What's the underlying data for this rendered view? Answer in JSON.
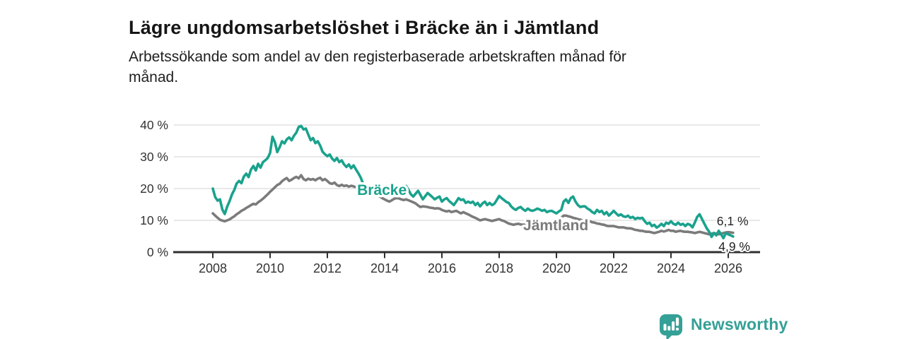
{
  "header": {
    "title": "Lägre ungdomsarbetslöshet i Bräcke än i Jämtland",
    "subtitle_lines": [
      "Arbetssökande som andel av den registerbaserade arbetskraften månad för",
      "månad."
    ]
  },
  "footer": {
    "brand": "Newsworthy"
  },
  "colors": {
    "accent_teal": "#1aa28d",
    "line_gray": "#7b7b7b",
    "axis": "#2f2f2f",
    "grid": "#d9d9d9",
    "logo_teal": "#35a096",
    "value_label": "#222222"
  },
  "chart_data": {
    "type": "line",
    "title": "Lägre ungdomsarbetslöshet i Bräcke än i Jämtland",
    "subtitle": "Arbetssökande som andel av den registerbaserade arbetskraften månad för månad.",
    "unit": "%",
    "x_start": 2008,
    "points_per_year": 12,
    "xlim": [
      2007.5,
      2027.1
    ],
    "ylim": [
      0,
      42
    ],
    "grid": true,
    "x_ticks": [
      {
        "value": 2008,
        "label": "2008"
      },
      {
        "value": 2010,
        "label": "2010"
      },
      {
        "value": 2012,
        "label": "2012"
      },
      {
        "value": 2014,
        "label": "2014"
      },
      {
        "value": 2016,
        "label": "2016"
      },
      {
        "value": 2018,
        "label": "2018"
      },
      {
        "value": 2020,
        "label": "2020"
      },
      {
        "value": 2022,
        "label": "2022"
      },
      {
        "value": 2024,
        "label": "2024"
      },
      {
        "value": 2026,
        "label": "2026"
      }
    ],
    "y_ticks": [
      {
        "value": 0,
        "label": "0 %"
      },
      {
        "value": 10,
        "label": "10 %"
      },
      {
        "value": 20,
        "label": "20 %"
      },
      {
        "value": 30,
        "label": "30 %"
      },
      {
        "value": 40,
        "label": "40 %"
      }
    ],
    "series": [
      {
        "id": "bracke",
        "name": "Bräcke",
        "color": "#1aa28d",
        "label_pos": {
          "year": 2013.04,
          "value": 18.0
        },
        "end_label": {
          "text": "4,9 %",
          "year": 2025.66,
          "value": 0.5
        },
        "values": [
          20.0,
          17.3,
          16.2,
          16.6,
          13.4,
          12.0,
          14.3,
          16.0,
          18.1,
          19.6,
          21.6,
          22.4,
          21.7,
          23.8,
          24.7,
          23.6,
          26.0,
          27.1,
          25.7,
          27.8,
          26.6,
          28.3,
          28.9,
          29.6,
          31.2,
          36.3,
          34.6,
          31.5,
          33.0,
          34.9,
          34.2,
          35.5,
          36.1,
          35.2,
          36.6,
          37.6,
          39.4,
          39.7,
          38.6,
          38.9,
          37.0,
          35.2,
          35.9,
          34.3,
          34.9,
          33.5,
          31.6,
          30.8,
          30.2,
          30.7,
          29.4,
          28.7,
          29.6,
          28.3,
          28.9,
          27.6,
          26.8,
          27.6,
          26.4,
          27.3,
          26.0,
          24.8,
          23.4,
          21.5,
          20.6,
          19.9,
          19.5,
          19.0,
          18.8,
          19.2,
          18.7,
          18.5,
          18.3,
          18.0,
          17.8,
          18.1,
          18.5,
          18.9,
          19.4,
          19.9,
          20.3,
          20.8,
          19.6,
          18.2,
          17.5,
          18.4,
          19.3,
          18.0,
          16.6,
          17.6,
          18.6,
          18.0,
          17.3,
          16.6,
          17.1,
          17.5,
          15.9,
          16.6,
          17.0,
          16.1,
          15.5,
          14.8,
          15.9,
          17.0,
          16.4,
          16.6,
          15.5,
          15.9,
          15.5,
          15.9,
          14.8,
          15.5,
          14.4,
          15.3,
          15.9,
          14.8,
          15.5,
          14.8,
          15.2,
          16.4,
          17.7,
          17.0,
          16.4,
          15.8,
          15.5,
          14.4,
          13.7,
          13.3,
          13.9,
          14.2,
          13.5,
          13.0,
          13.7,
          13.2,
          13.0,
          13.3,
          13.7,
          13.4,
          13.0,
          13.3,
          12.6,
          12.9,
          13.0,
          12.6,
          12.2,
          12.8,
          13.3,
          15.9,
          16.6,
          15.5,
          17.0,
          17.5,
          15.9,
          14.8,
          14.2,
          14.4,
          14.4,
          13.7,
          13.3,
          12.6,
          12.2,
          13.3,
          12.6,
          13.0,
          11.9,
          12.6,
          11.5,
          12.2,
          13.0,
          12.2,
          11.5,
          11.9,
          11.3,
          11.1,
          11.5,
          10.8,
          11.1,
          10.4,
          10.8,
          10.6,
          10.8,
          9.7,
          8.9,
          9.3,
          8.2,
          8.6,
          7.7,
          8.2,
          8.9,
          8.2,
          9.3,
          8.9,
          9.7,
          8.9,
          8.6,
          9.3,
          8.6,
          8.9,
          8.2,
          8.9,
          8.6,
          7.8,
          9.3,
          11.1,
          11.9,
          10.4,
          8.9,
          7.5,
          6.4,
          4.8,
          6.0,
          5.3,
          6.7,
          5.6,
          4.4,
          6.0,
          5.6,
          5.3,
          4.9
        ]
      },
      {
        "id": "jamtland",
        "name": "Jämtland",
        "color": "#7b7b7b",
        "label_pos": {
          "year": 2018.84,
          "value": 6.9
        },
        "end_label": {
          "text": "6,1 %",
          "year": 2025.6,
          "value": 8.4
        },
        "values": [
          12.2,
          11.5,
          10.8,
          10.2,
          9.9,
          9.7,
          10.0,
          10.3,
          10.8,
          11.3,
          11.9,
          12.4,
          13.0,
          13.4,
          13.9,
          14.3,
          14.8,
          15.2,
          15.0,
          15.7,
          16.2,
          16.8,
          17.5,
          18.2,
          19.0,
          19.7,
          20.4,
          21.1,
          21.5,
          22.3,
          22.9,
          23.3,
          22.4,
          22.8,
          23.3,
          23.7,
          23.2,
          24.2,
          23.0,
          22.6,
          23.1,
          22.8,
          23.0,
          22.6,
          23.1,
          23.4,
          22.6,
          23.0,
          22.4,
          21.7,
          21.5,
          21.9,
          21.1,
          20.8,
          21.2,
          20.8,
          21.0,
          20.6,
          20.9,
          20.7,
          20.4,
          20.6,
          20.2,
          20.5,
          20.7,
          20.3,
          19.8,
          19.2,
          18.6,
          18.0,
          17.5,
          17.0,
          16.6,
          16.2,
          15.9,
          16.3,
          16.8,
          17.0,
          16.9,
          16.6,
          16.4,
          16.6,
          16.3,
          16.0,
          15.7,
          15.3,
          14.7,
          14.2,
          14.4,
          14.3,
          14.2,
          14.0,
          13.9,
          13.7,
          13.8,
          13.7,
          13.3,
          13.0,
          12.8,
          13.0,
          12.6,
          12.8,
          13.0,
          12.6,
          12.2,
          12.6,
          12.2,
          11.9,
          11.5,
          11.1,
          10.8,
          10.4,
          10.0,
          10.2,
          10.4,
          10.2,
          10.0,
          9.8,
          10.0,
          10.2,
          10.4,
          10.0,
          9.8,
          9.4,
          9.0,
          8.8,
          8.6,
          8.8,
          8.9,
          8.7,
          8.6,
          8.7,
          8.6,
          8.8,
          8.9,
          9.1,
          9.3,
          9.1,
          8.9,
          9.0,
          9.2,
          9.3,
          9.2,
          9.3,
          9.5,
          9.9,
          10.8,
          11.5,
          11.5,
          11.3,
          11.1,
          10.8,
          10.6,
          10.4,
          10.2,
          10.0,
          10.0,
          9.8,
          9.7,
          9.4,
          9.3,
          9.0,
          8.9,
          8.7,
          8.6,
          8.3,
          8.2,
          8.2,
          8.2,
          8.0,
          7.8,
          7.8,
          7.8,
          7.6,
          7.5,
          7.5,
          7.3,
          7.0,
          6.9,
          6.7,
          6.7,
          6.5,
          6.4,
          6.4,
          6.2,
          6.0,
          6.2,
          6.4,
          6.7,
          6.5,
          6.7,
          7.0,
          6.7,
          6.7,
          6.4,
          6.6,
          6.7,
          6.5,
          6.4,
          6.4,
          6.3,
          6.2,
          6.0,
          6.2,
          6.4,
          6.2,
          6.0,
          5.8,
          5.6,
          5.8,
          6.0,
          5.8,
          5.6,
          5.8,
          6.0,
          6.2,
          6.3,
          6.2,
          6.1
        ]
      }
    ],
    "legend_position": "inline-labels"
  }
}
